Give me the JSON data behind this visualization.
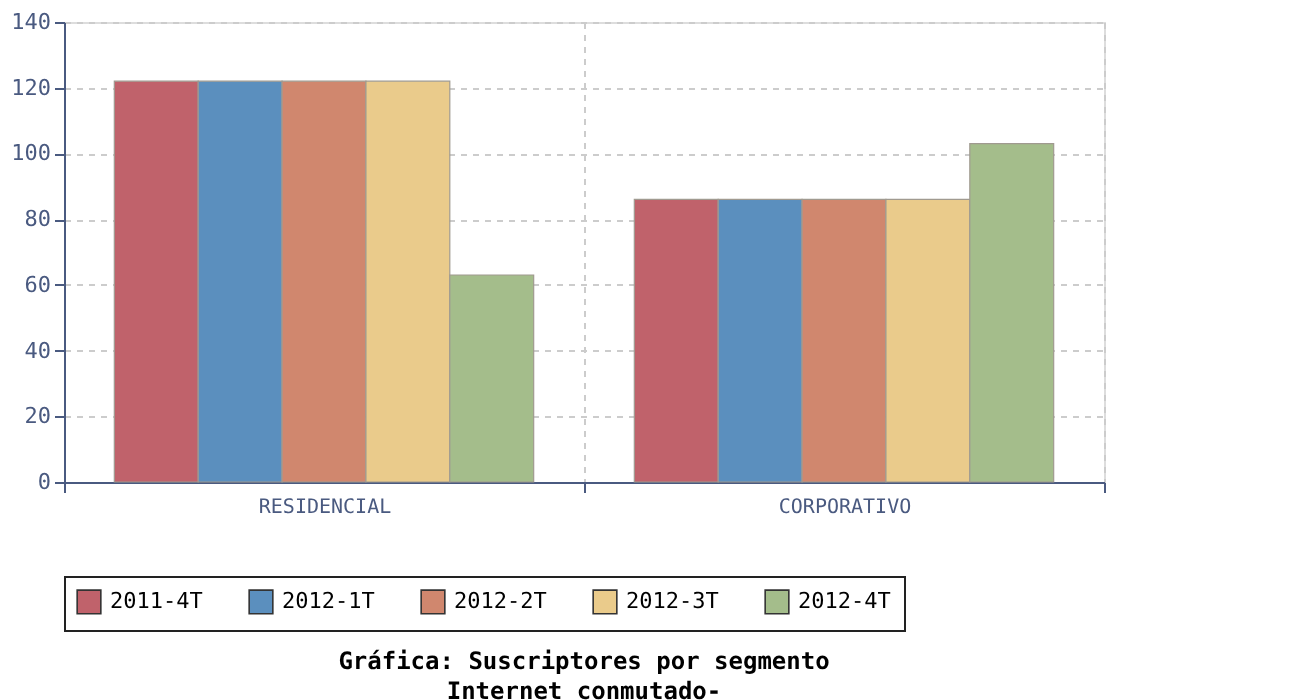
{
  "chart_data": {
    "type": "bar",
    "title": "Gráfica: Suscriptores por segmento",
    "subtitle": "Internet conmutado-",
    "categories": [
      "RESIDENCIAL",
      "CORPORATIVO"
    ],
    "series": [
      {
        "name": "2011-4T",
        "color": "#c0626b",
        "values": [
          122,
          86
        ]
      },
      {
        "name": "2012-1T",
        "color": "#5b8fbe",
        "values": [
          122,
          86
        ]
      },
      {
        "name": "2012-2T",
        "color": "#d0876e",
        "values": [
          122,
          86
        ]
      },
      {
        "name": "2012-3T",
        "color": "#eacb8b",
        "values": [
          122,
          86
        ]
      },
      {
        "name": "2012-4T",
        "color": "#a4bd8b",
        "values": [
          63,
          103
        ]
      }
    ],
    "ylim": [
      0,
      140
    ],
    "yticks": [
      0,
      20,
      40,
      60,
      80,
      100,
      120,
      140
    ],
    "grid": true,
    "legend": "bottom"
  }
}
